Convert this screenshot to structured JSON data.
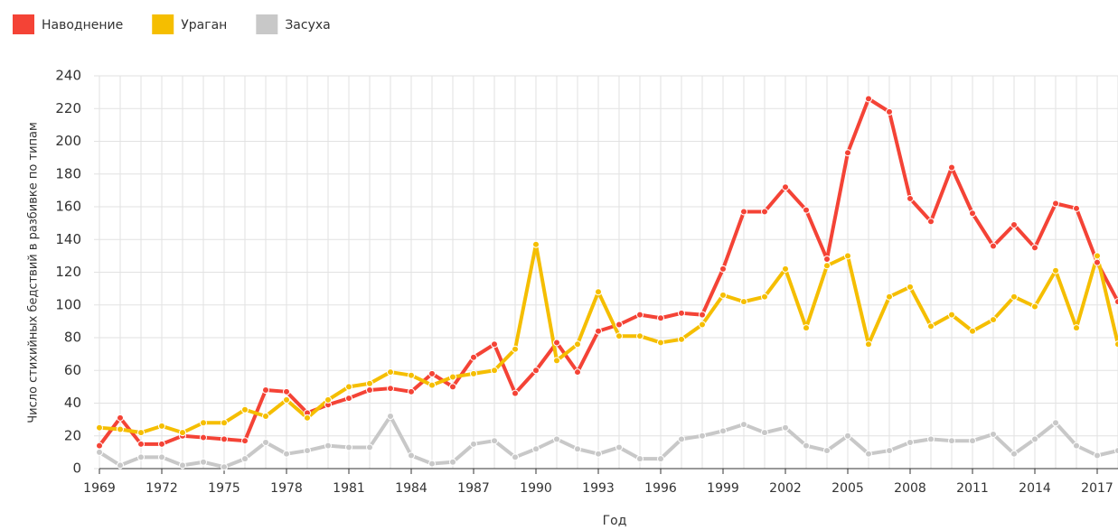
{
  "chart_data": {
    "type": "line",
    "x": [
      1969,
      1970,
      1971,
      1972,
      1973,
      1974,
      1975,
      1976,
      1977,
      1978,
      1979,
      1980,
      1981,
      1982,
      1983,
      1984,
      1985,
      1986,
      1987,
      1988,
      1989,
      1990,
      1991,
      1992,
      1993,
      1994,
      1995,
      1996,
      1997,
      1998,
      1999,
      2000,
      2001,
      2002,
      2003,
      2004,
      2005,
      2006,
      2007,
      2008,
      2009,
      2010,
      2011,
      2012,
      2013,
      2014,
      2015,
      2016,
      2017,
      2018
    ],
    "series": [
      {
        "name": "Наводнение",
        "color": "#f44336",
        "values": [
          14,
          31,
          15,
          15,
          20,
          19,
          18,
          17,
          48,
          47,
          34,
          39,
          43,
          48,
          49,
          47,
          58,
          50,
          68,
          76,
          46,
          60,
          77,
          59,
          84,
          88,
          94,
          92,
          95,
          94,
          122,
          157,
          157,
          172,
          158,
          128,
          193,
          226,
          218,
          165,
          151,
          184,
          156,
          136,
          149,
          135,
          162,
          159,
          126,
          102
        ]
      },
      {
        "name": "Ураган",
        "color": "#f5be00",
        "values": [
          25,
          24,
          22,
          26,
          22,
          28,
          28,
          36,
          32,
          42,
          31,
          42,
          50,
          52,
          59,
          57,
          51,
          56,
          58,
          60,
          73,
          137,
          66,
          76,
          108,
          81,
          81,
          77,
          79,
          88,
          106,
          102,
          105,
          122,
          86,
          124,
          130,
          76,
          105,
          111,
          87,
          94,
          84,
          91,
          105,
          99,
          121,
          86,
          130,
          76
        ]
      },
      {
        "name": "Засуха",
        "color": "#c8c8c8",
        "values": [
          10,
          2,
          7,
          7,
          2,
          4,
          1,
          6,
          16,
          9,
          11,
          14,
          13,
          13,
          32,
          8,
          3,
          4,
          15,
          17,
          7,
          12,
          18,
          12,
          9,
          13,
          6,
          6,
          18,
          20,
          23,
          27,
          22,
          25,
          14,
          11,
          20,
          9,
          11,
          16,
          18,
          17,
          17,
          21,
          9,
          18,
          28,
          14,
          8,
          11
        ]
      }
    ],
    "xlim": [
      1969,
      2018
    ],
    "xticks": [
      1969,
      1972,
      1975,
      1978,
      1981,
      1984,
      1987,
      1990,
      1993,
      1996,
      1999,
      2002,
      2005,
      2008,
      2011,
      2014,
      2017
    ],
    "ylim": [
      0,
      240
    ],
    "yticks": [
      0,
      20,
      40,
      60,
      80,
      100,
      120,
      140,
      160,
      180,
      200,
      220,
      240
    ],
    "xlabel": "Год",
    "ylabel": "Число стихийных бедствий в разбивке по типам",
    "grid": true,
    "legend": "top-left"
  }
}
